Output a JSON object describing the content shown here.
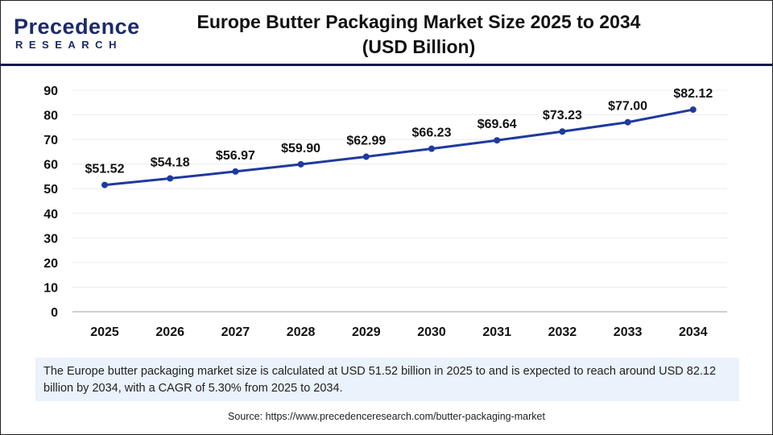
{
  "logo": {
    "line1": "Precedence",
    "line2": "RESEARCH"
  },
  "title_line1": "Europe Butter Packaging Market Size 2025 to 2034",
  "title_line2": "(USD Billion)",
  "chart_data": {
    "type": "line",
    "categories": [
      "2025",
      "2026",
      "2027",
      "2028",
      "2029",
      "2030",
      "2031",
      "2032",
      "2033",
      "2034"
    ],
    "values": [
      51.52,
      54.18,
      56.97,
      59.9,
      62.99,
      66.23,
      69.64,
      73.23,
      77.0,
      82.12
    ],
    "data_labels": [
      "$51.52",
      "$54.18",
      "$56.97",
      "$59.90",
      "$62.99",
      "$66.23",
      "$69.64",
      "$73.23",
      "$77.00",
      "$82.12"
    ],
    "yticks": [
      0,
      10,
      20,
      30,
      40,
      50,
      60,
      70,
      80,
      90
    ],
    "ylim": [
      0,
      90
    ],
    "grid": true,
    "line_color": "#1f3a9e"
  },
  "note": "The Europe butter packaging market size is calculated at USD 51.52 billion in 2025 to and is expected to reach around USD 82.12 billion by 2034, with a CAGR of 5.30% from 2025 to 2034.",
  "source": "Source: https://www.precedenceresearch.com/butter-packaging-market"
}
